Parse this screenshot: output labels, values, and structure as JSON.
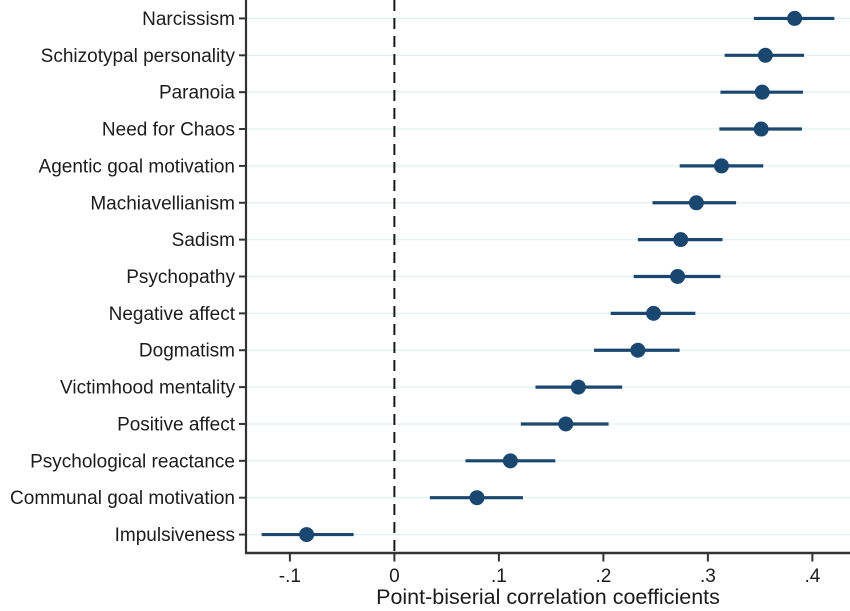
{
  "chart_data": {
    "type": "scatter",
    "variant": "horizontal dot-and-whisker forest plot",
    "title": "",
    "xlabel": "Point-biserial correlation coefficients",
    "ylabel": "",
    "legend": "none",
    "grid": "horizontal light gridlines",
    "xlim": [
      -0.142,
      0.436
    ],
    "reference_line_x": 0,
    "x_ticks": {
      "values": [
        -0.1,
        0,
        0.1,
        0.2,
        0.3,
        0.4
      ],
      "labels": [
        "-.1",
        "0",
        ".1",
        ".2",
        ".3",
        ".4"
      ]
    },
    "categories": [
      "Narcissism",
      "Schizotypal personality",
      "Paranoia",
      "Need for Chaos",
      "Agentic goal motivation",
      "Machiavellianism",
      "Sadism",
      "Psychopathy",
      "Negative affect",
      "Dogmatism",
      "Victimhood mentality",
      "Positive affect",
      "Psychological reactance",
      "Communal goal motivation",
      "Impulsiveness"
    ],
    "series": [
      {
        "name": "point-biserial correlation with confidence interval",
        "values": [
          0.383,
          0.355,
          0.352,
          0.351,
          0.313,
          0.289,
          0.274,
          0.271,
          0.248,
          0.233,
          0.176,
          0.164,
          0.111,
          0.079,
          -0.084
        ],
        "ci_low": [
          0.344,
          0.316,
          0.312,
          0.311,
          0.273,
          0.247,
          0.233,
          0.229,
          0.207,
          0.191,
          0.135,
          0.121,
          0.068,
          0.034,
          -0.127
        ],
        "ci_high": [
          0.421,
          0.392,
          0.391,
          0.39,
          0.353,
          0.327,
          0.314,
          0.312,
          0.288,
          0.273,
          0.218,
          0.205,
          0.154,
          0.123,
          -0.039
        ]
      }
    ]
  },
  "style": {
    "marker_color": "#1a476f",
    "ci_color": "#1a476f",
    "grid_color": "#e4efef",
    "axis_color": "#333333",
    "zero_line_color": "#1a1a1a",
    "text_color": "#1c1c1c",
    "background": "#ffffff"
  }
}
